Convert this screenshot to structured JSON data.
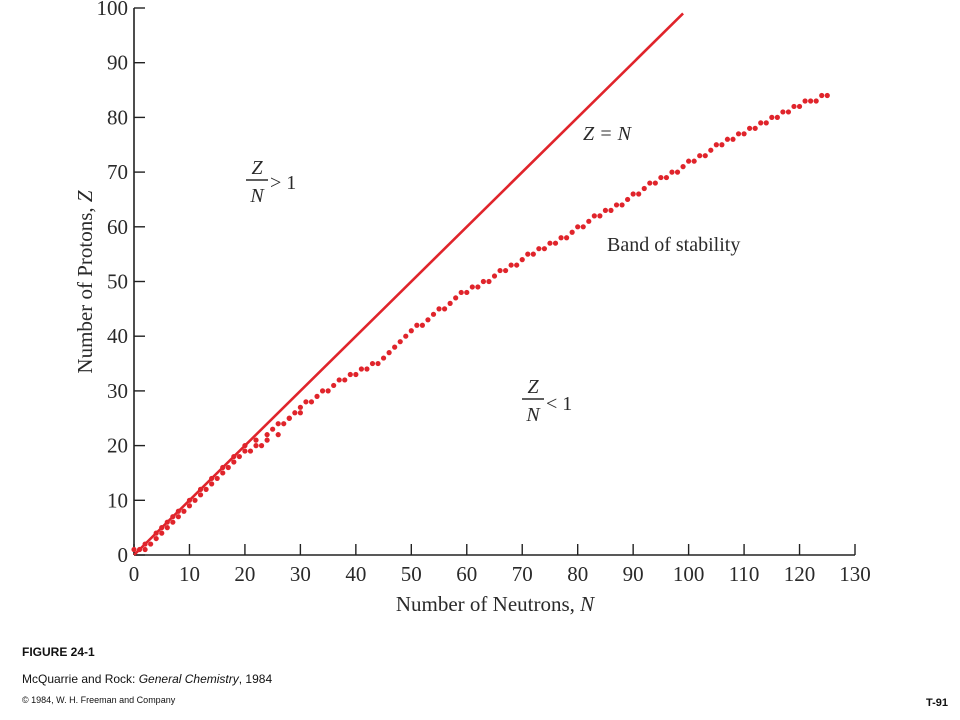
{
  "chart_data": {
    "type": "scatter",
    "xlabel_text": "Number of Neutrons, ",
    "xlabel_var": "N",
    "ylabel_text": "Number of Protons, ",
    "ylabel_var": "Z",
    "xlim": [
      0,
      130
    ],
    "ylim": [
      0,
      100
    ],
    "x_ticks": [
      "0",
      "10",
      "20",
      "30",
      "40",
      "50",
      "60",
      "70",
      "80",
      "90",
      "100",
      "110",
      "120",
      "130"
    ],
    "y_ticks": [
      "0",
      "10",
      "20",
      "30",
      "40",
      "50",
      "60",
      "70",
      "80",
      "90",
      "100"
    ],
    "grid": false,
    "colors": {
      "points": "#e0242b",
      "line": "#e0242b",
      "axis": "#222222"
    },
    "reference_line": {
      "label": "Z = N",
      "x": [
        0,
        99
      ],
      "y": [
        0,
        99
      ]
    },
    "annotations": {
      "band_label": "Band of stability",
      "upper_ratio_num": "Z",
      "upper_ratio_den": "N",
      "upper_ratio_rel": "> 1",
      "lower_ratio_num": "Z",
      "lower_ratio_den": "N",
      "lower_ratio_rel": "< 1"
    },
    "band_of_stability": {
      "x": [
        0,
        1,
        2,
        2,
        3,
        4,
        4,
        5,
        5,
        6,
        6,
        7,
        7,
        8,
        8,
        9,
        10,
        10,
        11,
        12,
        12,
        13,
        14,
        14,
        15,
        16,
        16,
        17,
        18,
        18,
        19,
        20,
        20,
        21,
        22,
        22,
        23,
        24,
        24,
        25,
        26,
        26,
        27,
        28,
        28,
        29,
        30,
        30,
        31,
        32,
        33,
        34,
        35,
        36,
        37,
        38,
        39,
        40,
        41,
        42,
        43,
        44,
        45,
        46,
        47,
        48,
        49,
        50,
        51,
        52,
        53,
        54,
        55,
        56,
        57,
        58,
        59,
        60,
        61,
        62,
        63,
        64,
        65,
        66,
        67,
        68,
        69,
        70,
        71,
        72,
        73,
        74,
        75,
        76,
        77,
        78,
        79,
        80,
        81,
        82,
        83,
        84,
        85,
        86,
        87,
        88,
        89,
        90,
        91,
        92,
        93,
        94,
        95,
        96,
        97,
        98,
        99,
        100,
        101,
        102,
        103,
        104,
        105,
        106,
        107,
        108,
        109,
        110,
        111,
        112,
        113,
        114,
        115,
        116,
        117,
        118,
        119,
        120,
        121,
        122,
        123,
        124,
        125
      ],
      "y": [
        1,
        1,
        1,
        2,
        2,
        3,
        4,
        4,
        5,
        5,
        6,
        6,
        7,
        7,
        8,
        8,
        9,
        10,
        10,
        11,
        12,
        12,
        13,
        14,
        14,
        15,
        16,
        16,
        17,
        18,
        18,
        19,
        20,
        19,
        20,
        21,
        20,
        22,
        21,
        23,
        22,
        24,
        24,
        25,
        25,
        26,
        26,
        27,
        28,
        28,
        29,
        30,
        30,
        31,
        32,
        32,
        33,
        33,
        34,
        34,
        35,
        35,
        36,
        37,
        38,
        39,
        40,
        41,
        42,
        42,
        43,
        44,
        45,
        45,
        46,
        47,
        48,
        48,
        49,
        49,
        50,
        50,
        51,
        52,
        52,
        53,
        53,
        54,
        55,
        55,
        56,
        56,
        57,
        57,
        58,
        58,
        59,
        60,
        60,
        61,
        62,
        62,
        63,
        63,
        64,
        64,
        65,
        66,
        66,
        67,
        68,
        68,
        69,
        69,
        70,
        70,
        71,
        72,
        72,
        73,
        73,
        74,
        75,
        75,
        76,
        76,
        77,
        77,
        78,
        78,
        79,
        79,
        80,
        80,
        81,
        81,
        82,
        82,
        83,
        83,
        83,
        84,
        84
      ]
    }
  },
  "caption": {
    "figure": "FIGURE 24-1",
    "source_authors": "McQuarrie and Rock: ",
    "source_title": "General Chemistry",
    "source_year": ", 1984",
    "copyright": "© 1984, W. H. Freeman and Company",
    "slide_id": "T-91"
  }
}
